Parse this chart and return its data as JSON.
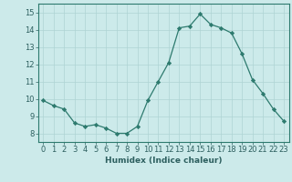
{
  "x": [
    0,
    1,
    2,
    3,
    4,
    5,
    6,
    7,
    8,
    9,
    10,
    11,
    12,
    13,
    14,
    15,
    16,
    17,
    18,
    19,
    20,
    21,
    22,
    23
  ],
  "y": [
    9.9,
    9.6,
    9.4,
    8.6,
    8.4,
    8.5,
    8.3,
    8.0,
    8.0,
    8.4,
    9.9,
    11.0,
    12.1,
    14.1,
    14.2,
    14.9,
    14.3,
    14.1,
    13.8,
    12.6,
    11.1,
    10.3,
    9.4,
    8.7
  ],
  "line_color": "#2d7a6e",
  "marker": "D",
  "marker_size": 2.2,
  "bg_color": "#cceaea",
  "grid_color": "#aed4d4",
  "xlabel": "Humidex (Indice chaleur)",
  "xlim": [
    -0.5,
    23.5
  ],
  "ylim": [
    7.5,
    15.5
  ],
  "yticks": [
    8,
    9,
    10,
    11,
    12,
    13,
    14,
    15
  ],
  "xticks": [
    0,
    1,
    2,
    3,
    4,
    5,
    6,
    7,
    8,
    9,
    10,
    11,
    12,
    13,
    14,
    15,
    16,
    17,
    18,
    19,
    20,
    21,
    22,
    23
  ],
  "xlabel_fontsize": 6.5,
  "tick_fontsize": 6.0,
  "tick_color": "#2d5f5f",
  "spine_color": "#2d7a6e",
  "linewidth": 0.9
}
